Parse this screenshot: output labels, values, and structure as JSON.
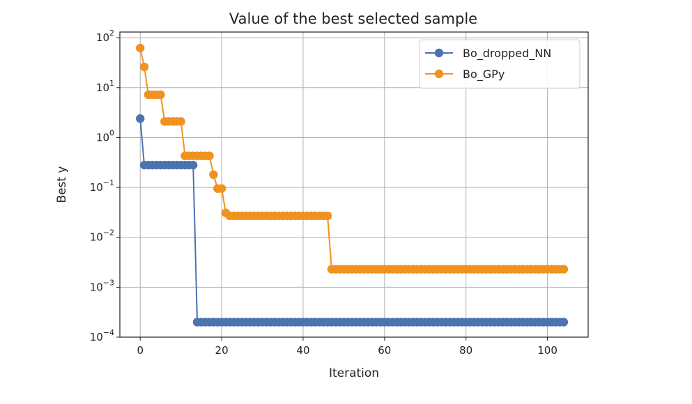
{
  "chart_data": {
    "type": "line",
    "title": "Value of the best selected sample",
    "xlabel": "Iteration",
    "ylabel": "Best y",
    "xlim": [
      -5,
      110
    ],
    "ylim": [
      0.0001,
      130
    ],
    "yscale": "log",
    "grid": true,
    "legend_position": "upper-right",
    "xticks": [
      0,
      20,
      40,
      60,
      80,
      100
    ],
    "yticks": [
      {
        "base": "10",
        "exp": "−4",
        "value": 0.0001
      },
      {
        "base": "10",
        "exp": "−3",
        "value": 0.001
      },
      {
        "base": "10",
        "exp": "−2",
        "value": 0.01
      },
      {
        "base": "10",
        "exp": "−1",
        "value": 0.1
      },
      {
        "base": "10",
        "exp": "0",
        "value": 1
      },
      {
        "base": "10",
        "exp": "1",
        "value": 10
      },
      {
        "base": "10",
        "exp": "2",
        "value": 100
      }
    ],
    "series": [
      {
        "name": "Bo_dropped_NN",
        "color": "#4c72b0",
        "segments": [
          {
            "from": 0,
            "to": 0,
            "y": 2.4
          },
          {
            "from": 1,
            "to": 13,
            "y": 0.28
          },
          {
            "from": 14,
            "to": 104,
            "y": 0.0002
          }
        ]
      },
      {
        "name": "Bo_GPy",
        "color": "#f0921f",
        "segments": [
          {
            "from": 0,
            "to": 0,
            "y": 62
          },
          {
            "from": 1,
            "to": 1,
            "y": 26
          },
          {
            "from": 2,
            "to": 5,
            "y": 7.2
          },
          {
            "from": 6,
            "to": 10,
            "y": 2.1
          },
          {
            "from": 11,
            "to": 17,
            "y": 0.43
          },
          {
            "from": 18,
            "to": 18,
            "y": 0.18
          },
          {
            "from": 19,
            "to": 20,
            "y": 0.095
          },
          {
            "from": 21,
            "to": 21,
            "y": 0.031
          },
          {
            "from": 22,
            "to": 46,
            "y": 0.027
          },
          {
            "from": 47,
            "to": 104,
            "y": 0.0023
          }
        ]
      }
    ]
  }
}
